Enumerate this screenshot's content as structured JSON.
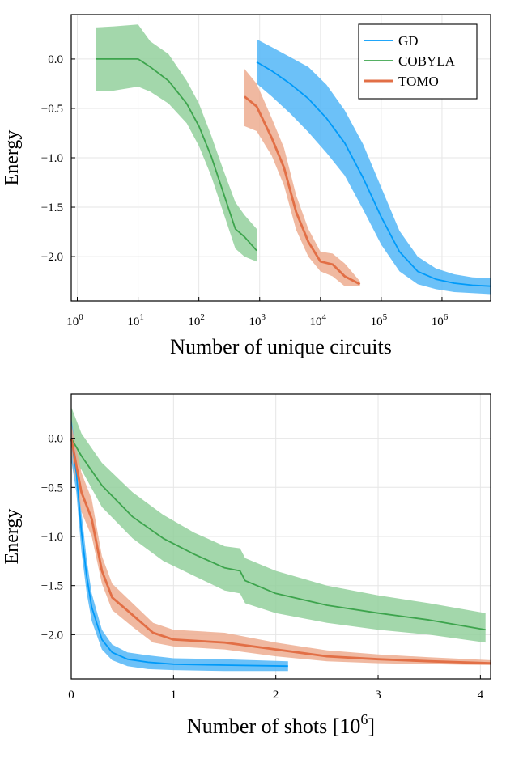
{
  "chart_data": [
    {
      "type": "line",
      "xscale": "log10",
      "xlabel": "Number of unique circuits",
      "ylabel": "Energy",
      "xlim_log10": [
        -0.1,
        6.8
      ],
      "ylim": [
        -2.45,
        0.45
      ],
      "xticks": [
        {
          "exp": 0,
          "base": "10",
          "sup": "0"
        },
        {
          "exp": 1,
          "base": "10",
          "sup": "1"
        },
        {
          "exp": 2,
          "base": "10",
          "sup": "2"
        },
        {
          "exp": 3,
          "base": "10",
          "sup": "3"
        },
        {
          "exp": 4,
          "base": "10",
          "sup": "4"
        },
        {
          "exp": 5,
          "base": "10",
          "sup": "5"
        },
        {
          "exp": 6,
          "base": "10",
          "sup": "6"
        }
      ],
      "yticks": [
        0.0,
        -0.5,
        -1.0,
        -1.5,
        -2.0
      ],
      "ytick_labels": [
        "0.0",
        "−0.5",
        "−1.0",
        "−1.5",
        "−2.0"
      ],
      "legend": {
        "position": "top-right",
        "entries": [
          "GD",
          "COBYLA",
          "TOMO"
        ]
      },
      "series": [
        {
          "name": "GD",
          "color": "#009af9",
          "band_color": "#4cb3f7",
          "x_log10": [
            2.95,
            3.2,
            3.5,
            3.8,
            4.1,
            4.4,
            4.7,
            5.0,
            5.3,
            5.6,
            5.9,
            6.2,
            6.5,
            6.8
          ],
          "y": [
            -0.03,
            -0.12,
            -0.25,
            -0.4,
            -0.6,
            -0.85,
            -1.2,
            -1.6,
            -1.95,
            -2.15,
            -2.23,
            -2.27,
            -2.29,
            -2.3
          ],
          "lower": [
            -0.25,
            -0.38,
            -0.55,
            -0.74,
            -0.95,
            -1.18,
            -1.52,
            -1.88,
            -2.15,
            -2.28,
            -2.33,
            -2.36,
            -2.37,
            -2.38
          ],
          "upper": [
            0.2,
            0.12,
            0.02,
            -0.08,
            -0.26,
            -0.52,
            -0.86,
            -1.3,
            -1.74,
            -2.0,
            -2.12,
            -2.18,
            -2.21,
            -2.22
          ]
        },
        {
          "name": "COBYLA",
          "color": "#3da44d",
          "band_color": "#8fce99",
          "x_log10": [
            0.3,
            0.6,
            1.0,
            1.2,
            1.5,
            1.8,
            2.0,
            2.2,
            2.4,
            2.6,
            2.75,
            2.95
          ],
          "y": [
            0.0,
            0.0,
            0.0,
            -0.08,
            -0.22,
            -0.45,
            -0.68,
            -0.98,
            -1.35,
            -1.72,
            -1.8,
            -1.94
          ],
          "lower": [
            -0.32,
            -0.32,
            -0.28,
            -0.33,
            -0.45,
            -0.65,
            -0.88,
            -1.18,
            -1.55,
            -1.92,
            -2.0,
            -2.05
          ],
          "upper": [
            0.32,
            0.33,
            0.35,
            0.18,
            0.05,
            -0.22,
            -0.45,
            -0.77,
            -1.12,
            -1.45,
            -1.58,
            -1.72
          ]
        },
        {
          "name": "TOMO",
          "color": "#e26f46",
          "band_color": "#eda98c",
          "x_log10": [
            2.75,
            2.95,
            3.2,
            3.4,
            3.6,
            3.8,
            4.0,
            4.2,
            4.4,
            4.65
          ],
          "y": [
            -0.38,
            -0.48,
            -0.8,
            -1.1,
            -1.55,
            -1.85,
            -2.05,
            -2.08,
            -2.2,
            -2.28
          ],
          "lower": [
            -0.68,
            -0.73,
            -0.98,
            -1.28,
            -1.73,
            -2.0,
            -2.15,
            -2.2,
            -2.3,
            -2.3
          ],
          "upper": [
            -0.1,
            -0.25,
            -0.6,
            -0.9,
            -1.38,
            -1.72,
            -1.95,
            -1.97,
            -2.07,
            -2.25
          ]
        }
      ]
    },
    {
      "type": "line",
      "xscale": "linear",
      "xlabel": "Number of shots [10",
      "xlabel_sup": "6",
      "xlabel_end": "]",
      "ylabel": "Energy",
      "xlim": [
        0,
        4.1
      ],
      "ylim": [
        -2.45,
        0.45
      ],
      "xticks": [
        0,
        1,
        2,
        3,
        4
      ],
      "xtick_labels": [
        "0",
        "1",
        "2",
        "3",
        "4"
      ],
      "yticks": [
        0.0,
        -0.5,
        -1.0,
        -1.5,
        -2.0
      ],
      "ytick_labels": [
        "0.0",
        "−0.5",
        "−1.0",
        "−1.5",
        "−2.0"
      ],
      "series": [
        {
          "name": "GD",
          "color": "#009af9",
          "band_color": "#4cb3f7",
          "x": [
            0.0,
            0.05,
            0.1,
            0.15,
            0.2,
            0.3,
            0.4,
            0.55,
            0.75,
            1.0,
            1.5,
            2.12
          ],
          "y": [
            0.0,
            -0.35,
            -0.95,
            -1.4,
            -1.72,
            -2.05,
            -2.18,
            -2.25,
            -2.28,
            -2.3,
            -2.31,
            -2.32
          ],
          "lower": [
            -0.22,
            -0.55,
            -1.15,
            -1.57,
            -1.86,
            -2.15,
            -2.26,
            -2.32,
            -2.35,
            -2.36,
            -2.37,
            -2.37
          ],
          "upper": [
            0.22,
            -0.15,
            -0.75,
            -1.23,
            -1.58,
            -1.95,
            -2.1,
            -2.18,
            -2.21,
            -2.24,
            -2.25,
            -2.27
          ]
        },
        {
          "name": "COBYLA",
          "color": "#3da44d",
          "band_color": "#8fce99",
          "x": [
            0.0,
            0.1,
            0.3,
            0.6,
            0.9,
            1.2,
            1.5,
            1.65,
            1.7,
            2.0,
            2.5,
            3.0,
            3.5,
            4.05
          ],
          "y": [
            0.0,
            -0.18,
            -0.48,
            -0.8,
            -1.02,
            -1.18,
            -1.32,
            -1.35,
            -1.45,
            -1.58,
            -1.7,
            -1.78,
            -1.85,
            -1.95
          ],
          "lower": [
            -0.18,
            -0.32,
            -0.7,
            -1.02,
            -1.25,
            -1.4,
            -1.55,
            -1.58,
            -1.68,
            -1.78,
            -1.88,
            -1.95,
            -2.0,
            -2.08
          ],
          "upper": [
            0.32,
            0.05,
            -0.25,
            -0.55,
            -0.78,
            -0.96,
            -1.1,
            -1.12,
            -1.22,
            -1.35,
            -1.5,
            -1.6,
            -1.68,
            -1.78
          ]
        },
        {
          "name": "TOMO",
          "color": "#e26f46",
          "band_color": "#eda98c",
          "x": [
            0.0,
            0.1,
            0.2,
            0.3,
            0.4,
            0.6,
            0.8,
            1.0,
            1.5,
            2.0,
            2.5,
            3.0,
            3.5,
            4.1
          ],
          "y": [
            0.0,
            -0.55,
            -0.82,
            -1.35,
            -1.62,
            -1.8,
            -1.98,
            -2.05,
            -2.08,
            -2.15,
            -2.22,
            -2.25,
            -2.27,
            -2.29
          ],
          "lower": [
            -0.15,
            -0.75,
            -1.0,
            -1.48,
            -1.75,
            -1.92,
            -2.08,
            -2.12,
            -2.15,
            -2.22,
            -2.27,
            -2.29,
            -2.3,
            -2.31
          ],
          "upper": [
            0.15,
            -0.35,
            -0.62,
            -1.2,
            -1.48,
            -1.68,
            -1.88,
            -1.95,
            -1.98,
            -2.08,
            -2.16,
            -2.2,
            -2.23,
            -2.26
          ]
        }
      ]
    }
  ]
}
